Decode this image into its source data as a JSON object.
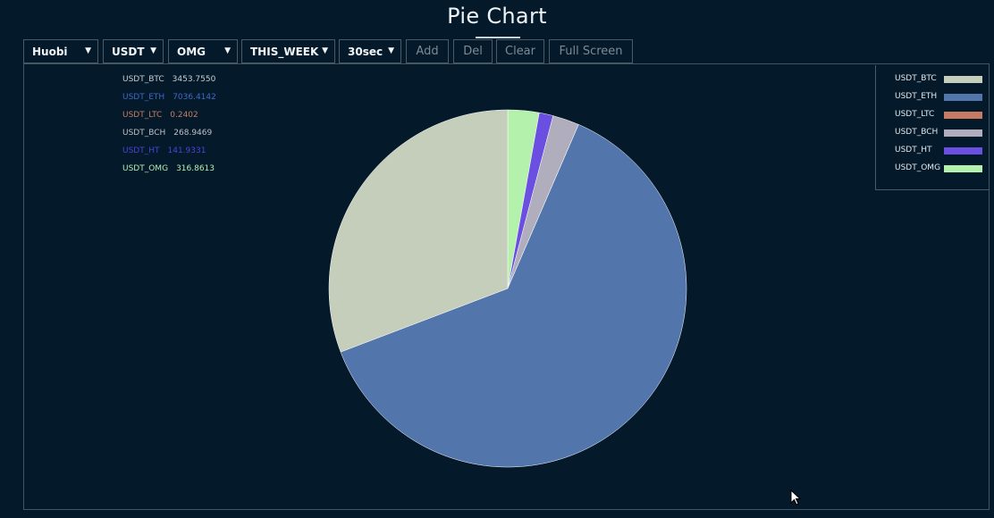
{
  "page": {
    "title": "Pie Chart"
  },
  "toolbar": {
    "exchange": "Huobi",
    "quote": "USDT",
    "base": "OMG",
    "period": "THIS_WEEK",
    "interval": "30sec",
    "add_label": "Add",
    "del_label": "Del",
    "clear_label": "Clear",
    "fullscreen_label": "Full Screen"
  },
  "chart_data": {
    "type": "pie",
    "title": "Pie Chart",
    "legend_position": "top-right",
    "slices": [
      {
        "name": "USDT_BTC",
        "value": 3453.755,
        "display": "3453.7550",
        "color": "#c4ceba"
      },
      {
        "name": "USDT_ETH",
        "value": 7036.4142,
        "display": "7036.4142",
        "color": "#5276ac"
      },
      {
        "name": "USDT_LTC",
        "value": 0.2402,
        "display": "0.2402",
        "color": "#c67b62"
      },
      {
        "name": "USDT_BCH",
        "value": 268.9469,
        "display": "268.9469",
        "color": "#b0adbd"
      },
      {
        "name": "USDT_HT",
        "value": 141.9331,
        "display": "141.9331",
        "color": "#6a4fe0"
      },
      {
        "name": "USDT_OMG",
        "value": 316.8613,
        "display": "316.8613",
        "color": "#b4f1ac"
      }
    ],
    "tooltip_colors": [
      "#c7cdd1",
      "#3f68c5",
      "#c67b62",
      "#c0c0c6",
      "#4b44d6",
      "#b4ecb1"
    ]
  }
}
